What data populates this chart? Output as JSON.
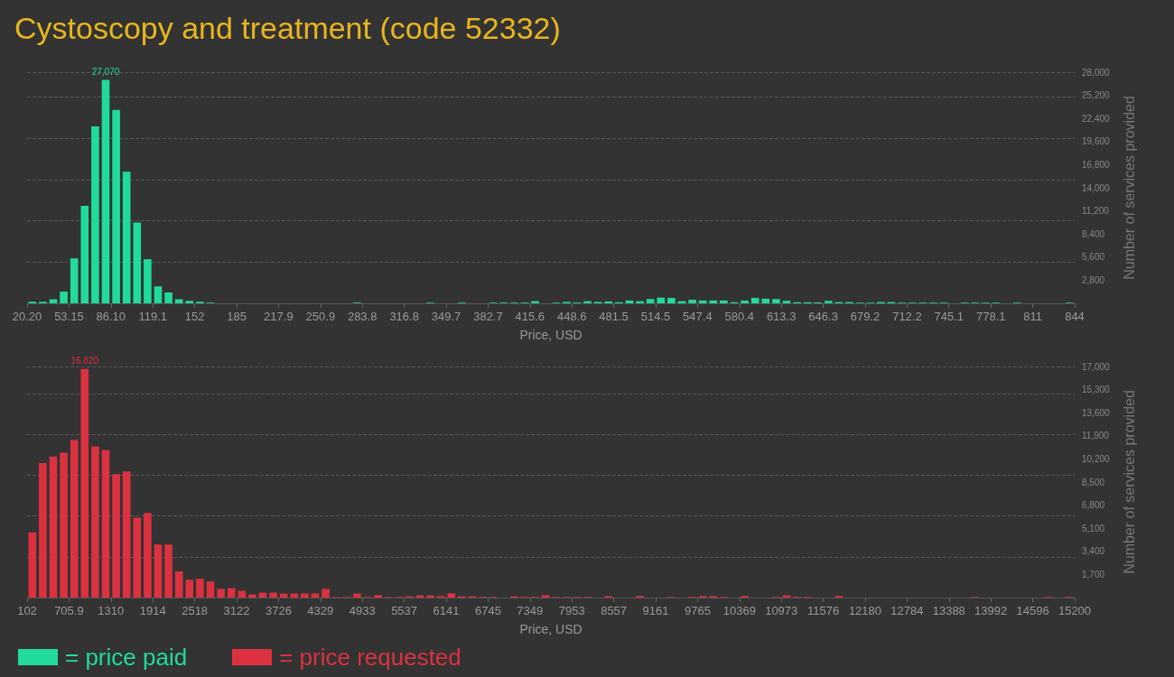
{
  "chart_data": [
    {
      "type": "histogram",
      "title": "Cystoscopy and treatment (code 52332)",
      "xlabel": "Price, USD",
      "ylabel": "Number of services provided",
      "grid": "y",
      "legend": "bottom",
      "bins": [
        20.2,
        28.438,
        36.676,
        44.914,
        53.152,
        61.39,
        69.628,
        77.866,
        86.104,
        94.342,
        102.58,
        110.818,
        119.056,
        127.294,
        135.532,
        143.77,
        152.008,
        160.246,
        168.484,
        176.722,
        184.96,
        193.198,
        201.436,
        209.674,
        217.912,
        226.15,
        234.388,
        242.626,
        250.864,
        259.102,
        267.34,
        275.578,
        283.816,
        292.054,
        300.292,
        308.53,
        316.768,
        325.006,
        333.244,
        341.482,
        349.72,
        357.958,
        366.196,
        374.434,
        382.672,
        390.91,
        399.148,
        407.386,
        415.624,
        423.862,
        432.1,
        440.338,
        448.576,
        456.814,
        465.052,
        473.29,
        481.528,
        489.766,
        498.004,
        506.242,
        514.48,
        522.718,
        530.956,
        539.194,
        547.432,
        555.67,
        563.908,
        572.146,
        580.384,
        588.622,
        596.86,
        605.098,
        613.336,
        621.574,
        629.812,
        638.05,
        646.288,
        654.526,
        662.764,
        671.002,
        679.24,
        687.478,
        695.716,
        703.954,
        712.192,
        720.43,
        728.668,
        736.906,
        745.144,
        753.382,
        761.62,
        769.858,
        778.096,
        786.334,
        794.572,
        802.81,
        811.048,
        819.286,
        827.524,
        835.762,
        844
      ],
      "series": [
        {
          "name": "= price paid",
          "color": "#21db9b",
          "values": [
            190,
            190,
            490,
            1420,
            5450,
            11800,
            21430,
            27070,
            23440,
            15940,
            9780,
            5340,
            2050,
            1310,
            490,
            300,
            190,
            75,
            0,
            0,
            0,
            0,
            0,
            0,
            0,
            0,
            0,
            0,
            0,
            0,
            0,
            80,
            0,
            0,
            0,
            0,
            0,
            0,
            80,
            0,
            0,
            80,
            0,
            0,
            80,
            80,
            80,
            80,
            260,
            0,
            80,
            170,
            90,
            260,
            170,
            220,
            130,
            340,
            260,
            520,
            690,
            650,
            260,
            430,
            340,
            340,
            340,
            130,
            340,
            650,
            560,
            520,
            300,
            130,
            130,
            110,
            300,
            150,
            150,
            75,
            75,
            150,
            150,
            75,
            75,
            75,
            75,
            75,
            0,
            75,
            75,
            75,
            75,
            0,
            75,
            0,
            0,
            0,
            0,
            75
          ],
          "value_labels": [
            null,
            null,
            null,
            null,
            null,
            null,
            null,
            "27,070",
            null,
            null,
            null,
            null,
            null,
            null,
            null,
            null,
            null,
            null,
            null,
            null,
            null,
            null,
            null,
            null,
            null,
            null,
            null,
            null,
            null,
            null,
            null,
            null,
            null,
            null,
            null,
            null,
            null,
            null,
            null,
            null,
            null,
            null,
            null,
            null,
            null,
            null,
            null,
            null,
            null,
            null,
            null,
            null,
            null,
            null,
            null,
            null,
            null,
            null,
            null,
            null,
            null,
            null,
            null,
            null,
            null,
            null,
            null,
            null,
            null,
            null,
            null,
            null,
            null,
            null,
            null,
            null,
            null,
            null,
            null,
            null,
            null,
            null,
            null,
            null,
            null,
            null,
            null,
            null,
            null,
            null,
            null,
            null,
            null,
            null,
            null,
            null,
            null,
            null,
            null,
            null
          ]
        }
      ],
      "xlim": [
        20.2,
        844
      ],
      "xticks": [
        {
          "value": 20.2,
          "label": "20.20"
        },
        53.15,
        {
          "value": 86.1,
          "label": "86.10"
        },
        119.1,
        152,
        185,
        217.9,
        250.9,
        283.8,
        316.8,
        349.7,
        382.7,
        415.6,
        448.6,
        481.5,
        514.5,
        547.4,
        580.4,
        613.3,
        646.3,
        679.2,
        712.2,
        745.1,
        778.1,
        811,
        844
      ],
      "ylim": [
        0,
        28000
      ],
      "yticks": [
        {
          "value": 2800,
          "label": "2,800"
        },
        {
          "value": 5600,
          "label": "5,600"
        },
        {
          "value": 8400,
          "label": "8,400"
        },
        {
          "value": 11200,
          "label": "11,200"
        },
        {
          "value": 14000,
          "label": "14,000"
        },
        {
          "value": 16800,
          "label": "16,800"
        },
        {
          "value": 19600,
          "label": "19,600"
        },
        {
          "value": 22400,
          "label": "22,400"
        },
        {
          "value": 25200,
          "label": "25,200"
        },
        {
          "value": 28000,
          "label": "28,000"
        }
      ]
    },
    {
      "type": "histogram",
      "xlabel": "Price, USD",
      "ylabel": "Number of services provided",
      "grid": "y",
      "legend": "bottom",
      "bins": [
        102,
        252.98,
        403.96,
        554.94,
        705.92,
        856.9,
        1007.88,
        1158.86,
        1309.84,
        1460.82,
        1611.8,
        1762.78,
        1913.76,
        2064.74,
        2215.72,
        2366.7,
        2517.68,
        2668.66,
        2819.64,
        2970.62,
        3121.6,
        3272.58,
        3423.56,
        3574.54,
        3725.52,
        3876.5,
        4027.48,
        4178.46,
        4329.44,
        4480.42,
        4631.4,
        4782.38,
        4933.36,
        5084.34,
        5235.32,
        5386.3,
        5537.28,
        5688.26,
        5839.24,
        5990.22,
        6141.2,
        6292.18,
        6443.16,
        6594.14,
        6745.12,
        6896.1,
        7047.08,
        7198.06,
        7349.04,
        7500.02,
        7651,
        7801.98,
        7952.96,
        8103.94,
        8254.92,
        8405.9,
        8556.88,
        8707.86,
        8858.84,
        9009.82,
        9160.8,
        9311.78,
        9462.76,
        9613.74,
        9764.72,
        9915.7,
        10066.68,
        10217.66,
        10368.64,
        10519.62,
        10670.6,
        10821.58,
        10972.56,
        11123.54,
        11274.52,
        11425.5,
        11576.48,
        11727.46,
        11878.44,
        12029.42,
        12180.4,
        12331.38,
        12482.36,
        12633.34,
        12784.32,
        12935.3,
        13086.28,
        13237.26,
        13388.24,
        13539.22,
        13690.2,
        13841.18,
        13992.16,
        14143.14,
        14294.12,
        14445.1,
        14596.08,
        14747.06,
        14898.04,
        15049.02,
        15200
      ],
      "series": [
        {
          "name": "= price requested",
          "color": "#dc3140",
          "values": [
            4790,
            9900,
            10370,
            10650,
            11600,
            16820,
            11120,
            10850,
            9080,
            9280,
            5880,
            6220,
            3900,
            3900,
            1930,
            1320,
            1380,
            1180,
            640,
            700,
            500,
            230,
            360,
            360,
            300,
            300,
            300,
            300,
            640,
            40,
            40,
            300,
            40,
            180,
            45,
            45,
            90,
            160,
            160,
            110,
            320,
            90,
            90,
            45,
            45,
            0,
            90,
            45,
            45,
            180,
            45,
            45,
            45,
            45,
            0,
            110,
            0,
            0,
            110,
            0,
            0,
            45,
            0,
            45,
            110,
            110,
            45,
            0,
            110,
            0,
            0,
            45,
            160,
            45,
            45,
            0,
            0,
            110,
            0,
            0,
            0,
            0,
            0,
            0,
            0,
            0,
            0,
            0,
            0,
            0,
            45,
            0,
            0,
            0,
            0,
            0,
            0,
            45,
            0,
            45
          ],
          "value_labels": [
            null,
            null,
            null,
            null,
            null,
            "16,820",
            null,
            null,
            null,
            null,
            null,
            null,
            null,
            null,
            null,
            null,
            null,
            null,
            null,
            null,
            null,
            null,
            null,
            null,
            null,
            null,
            null,
            null,
            null,
            null,
            null,
            null,
            null,
            null,
            null,
            null,
            null,
            null,
            null,
            null,
            null,
            null,
            null,
            null,
            null,
            null,
            null,
            null,
            null,
            null,
            null,
            null,
            null,
            null,
            null,
            null,
            null,
            null,
            null,
            null,
            null,
            null,
            null,
            null,
            null,
            null,
            null,
            null,
            null,
            null,
            null,
            null,
            null,
            null,
            null,
            null,
            null,
            null,
            null,
            null,
            null,
            null,
            null,
            null,
            null,
            null,
            null,
            null,
            null,
            null,
            null,
            null,
            null,
            null,
            null,
            null,
            null,
            null,
            null,
            null
          ]
        }
      ],
      "xlim": [
        102,
        15200
      ],
      "xticks": [
        102,
        705.9,
        1310,
        1914,
        2518,
        3122,
        3726,
        4329,
        4933,
        5537,
        6141,
        6745,
        7349,
        7953,
        8557,
        9161,
        9765,
        10369,
        10973,
        11576,
        12180,
        12784,
        13388,
        13992,
        14596,
        15200
      ],
      "ylim": [
        0,
        17000
      ],
      "yticks": [
        {
          "value": 1700,
          "label": "1,700"
        },
        {
          "value": 3400,
          "label": "3,400"
        },
        {
          "value": 5100,
          "label": "5,100"
        },
        {
          "value": 6800,
          "label": "6,800"
        },
        {
          "value": 8500,
          "label": "8,500"
        },
        {
          "value": 10200,
          "label": "10,200"
        },
        {
          "value": 11900,
          "label": "11,900"
        },
        {
          "value": 13600,
          "label": "13,600"
        },
        {
          "value": 15300,
          "label": "15,300"
        },
        {
          "value": 17000,
          "label": "17,000"
        }
      ]
    }
  ]
}
